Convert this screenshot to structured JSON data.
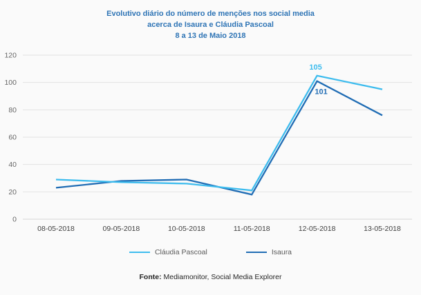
{
  "title": {
    "line1": "Evolutivo diário do número de menções nos social media",
    "line2": "acerca de Isaura e Cláudia Pascoal",
    "line3": "8 a 13 de Maio 2018"
  },
  "colors": {
    "title": "#2e74b5",
    "grid": "#e3e3e3",
    "axis": "#d5d5d5",
    "y_tick_label": "#666666",
    "x_tick_label": "#3f3f3f",
    "legend_text": "#595959",
    "background": "#fafafa"
  },
  "chart_data": {
    "type": "line",
    "title": "Evolutivo diário do número de menções nos social media acerca de Isaura e Cláudia Pascoal, 8 a 13 de Maio 2018",
    "categories": [
      "08-05-2018",
      "09-05-2018",
      "10-05-2018",
      "11-05-2018",
      "12-05-2018",
      "13-05-2018"
    ],
    "series": [
      {
        "name": "Cláudia Pascoal",
        "color": "#3dbcee",
        "values": [
          29,
          27,
          26,
          21,
          105,
          95
        ]
      },
      {
        "name": "Isaura",
        "color": "#1f6cb4",
        "values": [
          23,
          28,
          29,
          18,
          101,
          76
        ]
      }
    ],
    "ylim": [
      0,
      120
    ],
    "ytick_step": 20,
    "yticks": [
      0,
      20,
      40,
      60,
      80,
      100,
      120
    ],
    "grid": true,
    "legend_position": "bottom",
    "annotations": [
      {
        "series": "Cláudia Pascoal",
        "category": "12-05-2018",
        "label": "105",
        "position": "above"
      },
      {
        "series": "Isaura",
        "category": "12-05-2018",
        "label": "101",
        "position": "below"
      }
    ]
  },
  "footer": {
    "prefix": "Fonte:",
    "text": " Mediamonitor, Social Media Explorer"
  }
}
